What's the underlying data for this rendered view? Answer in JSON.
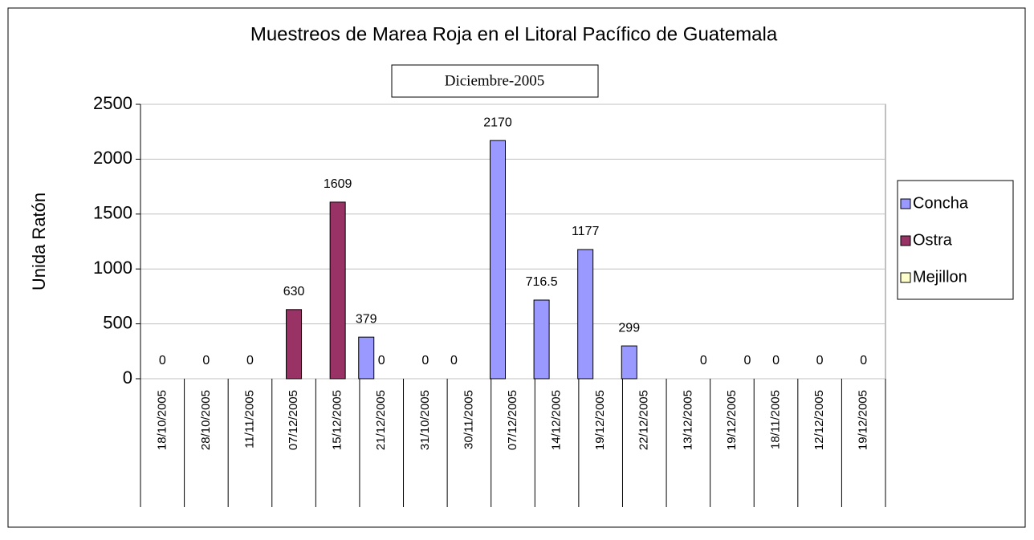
{
  "chart_data": {
    "type": "bar",
    "title": "Muestreos de Marea Roja en el Litoral Pacífico de Guatemala",
    "subtitle": "Diciembre-2005",
    "y_label": "Unida Ratón",
    "categories": [
      "18/10/2005",
      "28/10/2005",
      "11/11/2005",
      "07/12/2005",
      "15/12/2005",
      "21/12/2005",
      "31/10/2005",
      "30/11/2005",
      "07/12/2005",
      "14/12/2005",
      "19/12/2005",
      "22/12/2005",
      "13/12/2005",
      "19/12/2005",
      "18/11/2005",
      "12/12/2005",
      "19/12/2005"
    ],
    "series": [
      {
        "name": "Concha",
        "color": "#9999ff",
        "values": [
          null,
          null,
          null,
          null,
          null,
          379,
          null,
          0,
          2170,
          716.5,
          1177,
          299,
          null,
          null,
          null,
          null,
          null
        ]
      },
      {
        "name": "Ostra",
        "color": "#993366",
        "values": [
          0,
          0,
          0,
          630,
          1609,
          0,
          0,
          null,
          null,
          null,
          null,
          null,
          null,
          null,
          0,
          0,
          0
        ]
      },
      {
        "name": "Mejillon",
        "color": "#ffffcc",
        "values": [
          null,
          null,
          null,
          null,
          null,
          null,
          null,
          null,
          null,
          null,
          null,
          null,
          0,
          0,
          null,
          null,
          null
        ]
      }
    ],
    "ylim": [
      0,
      2500
    ],
    "yticks": [
      0,
      500,
      1000,
      1500,
      2000,
      2500
    ],
    "grid": true,
    "legend": "right"
  }
}
